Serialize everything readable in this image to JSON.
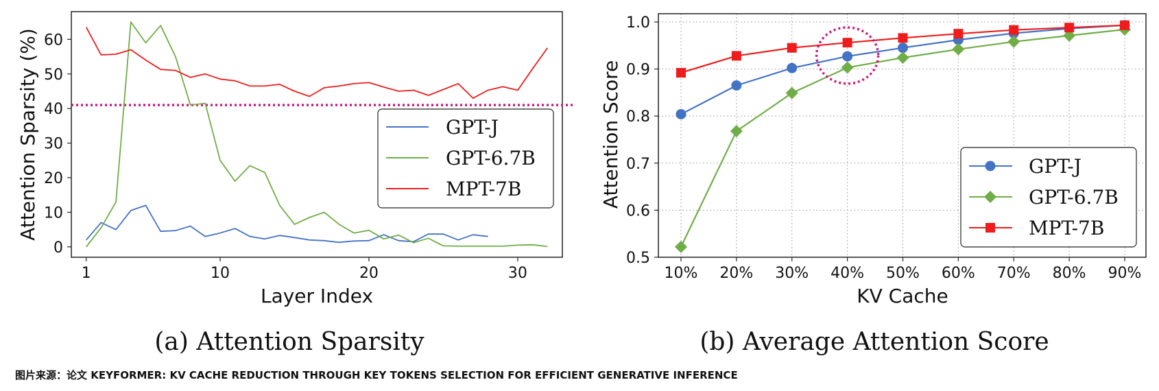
{
  "charts": {
    "a": {
      "caption": "(a) Attention Sparsity",
      "xlabel": "Layer Index",
      "ylabel": "Attention Sparsity (%)",
      "xticks": [
        1,
        10,
        20,
        30
      ],
      "yticks": [
        0,
        10,
        20,
        30,
        40,
        50,
        60
      ]
    },
    "b": {
      "caption": "(b) Average Attention Score",
      "xlabel": "KV Cache",
      "ylabel": "Attention Score",
      "xticks": [
        "10%",
        "20%",
        "30%",
        "40%",
        "50%",
        "60%",
        "70%",
        "80%",
        "90%"
      ],
      "yticks": [
        "0.5",
        "0.6",
        "0.7",
        "0.8",
        "0.9",
        "1.0"
      ]
    }
  },
  "legend": {
    "gptj": "GPT-J",
    "gpt67": "GPT-6.7B",
    "mpt": "MPT-7B"
  },
  "colors": {
    "gptj": "#4472c4",
    "gpt67": "#70ad47",
    "mpt": "#ee1c1c",
    "threshold": "#cc1a7a",
    "highlight": "#cc1a7a"
  },
  "credit": "图片来源：论文 KEYFORMER: KV CACHE REDUCTION THROUGH KEY TOKENS SELECTION FOR EFFICIENT GENERATIVE INFERENCE",
  "chart_data": [
    {
      "type": "line",
      "title": "(a) Attention Sparsity",
      "xlabel": "Layer Index",
      "ylabel": "Attention Sparsity (%)",
      "xlim": [
        0,
        33
      ],
      "ylim": [
        -3,
        68
      ],
      "threshold_y": 41,
      "legend_position": "center-right",
      "series": [
        {
          "key": "gptj",
          "name": "GPT-J",
          "x": [
            1,
            2,
            3,
            4,
            5,
            6,
            7,
            8,
            9,
            10,
            11,
            12,
            13,
            14,
            15,
            16,
            17,
            18,
            19,
            20,
            21,
            22,
            23,
            24,
            25,
            26,
            27,
            28
          ],
          "values": [
            2,
            7,
            5,
            10.5,
            12,
            4.5,
            4.7,
            6,
            3,
            4,
            5.3,
            3,
            2.3,
            3.3,
            2.7,
            2,
            1.8,
            1.3,
            1.7,
            1.8,
            3.5,
            1.8,
            1.5,
            3.7,
            3.7,
            2,
            3.5,
            3
          ]
        },
        {
          "key": "gpt67",
          "name": "GPT-6.7B",
          "x": [
            1,
            2,
            3,
            4,
            5,
            6,
            7,
            8,
            9,
            10,
            11,
            12,
            13,
            14,
            15,
            16,
            17,
            18,
            19,
            20,
            21,
            22,
            23,
            24,
            25,
            26,
            27,
            28,
            29,
            30,
            31,
            32
          ],
          "values": [
            0,
            5.5,
            13,
            65,
            59,
            64,
            55,
            41,
            41.5,
            25,
            19,
            23.5,
            21.5,
            12,
            6.5,
            8.5,
            10,
            6.5,
            4,
            4.8,
            2.3,
            3.4,
            1.2,
            2.5,
            0.3,
            0.2,
            0.2,
            0.2,
            0.2,
            0.5,
            0.6,
            0.1
          ]
        },
        {
          "key": "mpt",
          "name": "MPT-7B",
          "x": [
            1,
            2,
            3,
            4,
            5,
            6,
            7,
            8,
            9,
            10,
            11,
            12,
            13,
            14,
            15,
            16,
            17,
            18,
            19,
            20,
            21,
            22,
            23,
            24,
            25,
            26,
            27,
            28,
            29,
            30,
            31,
            32
          ],
          "values": [
            63.5,
            55.5,
            55.7,
            57,
            54,
            51.3,
            51,
            49,
            50,
            48.5,
            48,
            46.5,
            46.5,
            47,
            45,
            43.5,
            46,
            46.5,
            47.2,
            47.5,
            46.2,
            45,
            45.3,
            43.8,
            45.5,
            47.2,
            43,
            45.3,
            46.3,
            45.3,
            51.5,
            57.5
          ]
        }
      ]
    },
    {
      "type": "line",
      "title": "(b) Average Attention Score",
      "xlabel": "KV Cache",
      "ylabel": "Attention Score",
      "categories": [
        "10%",
        "20%",
        "30%",
        "40%",
        "50%",
        "60%",
        "70%",
        "80%",
        "90%"
      ],
      "ylim": [
        0.5,
        1.0
      ],
      "grid": true,
      "highlight_category": "40%",
      "legend_position": "bottom-right",
      "series": [
        {
          "key": "gptj",
          "name": "GPT-J",
          "marker": "circle",
          "values": [
            0.804,
            0.865,
            0.902,
            0.927,
            0.945,
            0.962,
            0.976,
            0.986,
            0.993
          ]
        },
        {
          "key": "gpt67",
          "name": "GPT-6.7B",
          "marker": "diamond",
          "values": [
            0.522,
            0.768,
            0.849,
            0.903,
            0.924,
            0.942,
            0.958,
            0.971,
            0.984
          ]
        },
        {
          "key": "mpt",
          "name": "MPT-7B",
          "marker": "square",
          "values": [
            0.892,
            0.928,
            0.945,
            0.956,
            0.966,
            0.975,
            0.983,
            0.988,
            0.993
          ]
        }
      ]
    }
  ]
}
